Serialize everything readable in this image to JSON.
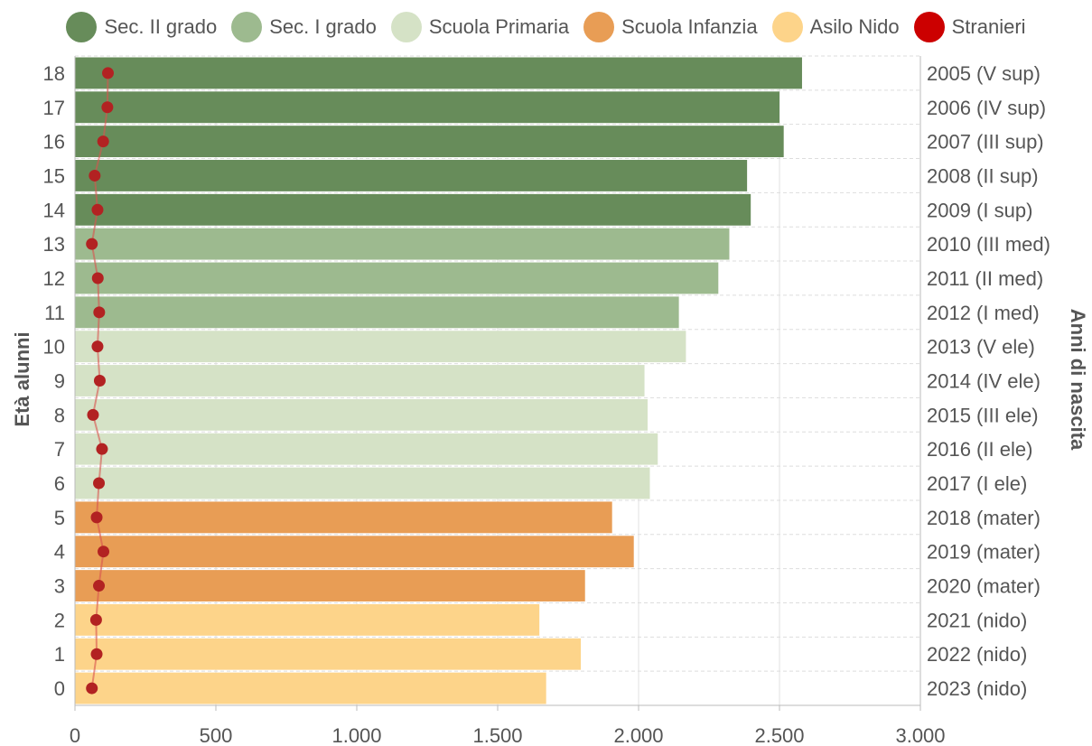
{
  "legend": [
    {
      "label": "Sec. II grado",
      "color": "#678c5a"
    },
    {
      "label": "Sec. I grado",
      "color": "#9dba8f"
    },
    {
      "label": "Scuola Primaria",
      "color": "#d5e2c6"
    },
    {
      "label": "Scuola Infanzia",
      "color": "#e89d55"
    },
    {
      "label": "Asilo Nido",
      "color": "#fdd48a"
    },
    {
      "label": "Stranieri",
      "color": "#cc0000"
    }
  ],
  "chart_data": {
    "type": "bar",
    "orientation": "horizontal",
    "ylabel": "Età alunni",
    "ylabel_right": "Anni di nascita",
    "xlim": [
      0,
      3000
    ],
    "x_ticks": [
      "0",
      "500",
      "1.000",
      "1.500",
      "2.000",
      "2.500",
      "3.000"
    ],
    "grid": true,
    "legend_position": "top",
    "categories": [
      "18",
      "17",
      "16",
      "15",
      "14",
      "13",
      "12",
      "11",
      "10",
      "9",
      "8",
      "7",
      "6",
      "5",
      "4",
      "3",
      "2",
      "1",
      "0"
    ],
    "right_labels": [
      "2005 (V sup)",
      "2006 (IV sup)",
      "2007 (III sup)",
      "2008 (II sup)",
      "2009 (I sup)",
      "2010 (III med)",
      "2011 (II med)",
      "2012 (I med)",
      "2013 (V ele)",
      "2014 (IV ele)",
      "2015 (III ele)",
      "2016 (II ele)",
      "2017 (I ele)",
      "2018 (mater)",
      "2019 (mater)",
      "2020 (mater)",
      "2021 (nido)",
      "2022 (nido)",
      "2023 (nido)"
    ],
    "values": [
      2580,
      2500,
      2515,
      2385,
      2398,
      2322,
      2283,
      2143,
      2168,
      2021,
      2032,
      2068,
      2040,
      1906,
      1983,
      1810,
      1648,
      1795,
      1672
    ],
    "groups": [
      "Sec. II grado",
      "Sec. II grado",
      "Sec. II grado",
      "Sec. II grado",
      "Sec. II grado",
      "Sec. I grado",
      "Sec. I grado",
      "Sec. I grado",
      "Scuola Primaria",
      "Scuola Primaria",
      "Scuola Primaria",
      "Scuola Primaria",
      "Scuola Primaria",
      "Scuola Infanzia",
      "Scuola Infanzia",
      "Scuola Infanzia",
      "Asilo Nido",
      "Asilo Nido",
      "Asilo Nido"
    ],
    "series": [
      {
        "name": "Stranieri",
        "type": "line",
        "values": [
          117,
          115,
          100,
          70,
          80,
          60,
          81,
          86,
          80,
          88,
          64,
          96,
          85,
          77,
          101,
          85,
          75,
          77,
          60
        ]
      }
    ]
  }
}
